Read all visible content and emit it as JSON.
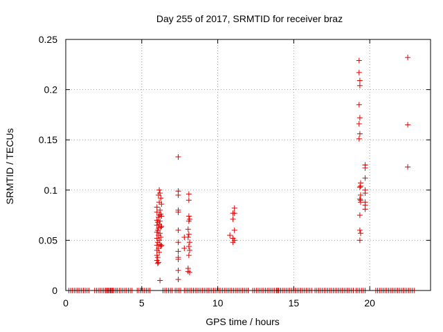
{
  "chart_data": {
    "type": "scatter",
    "title": "Day 255 of 2017, SRMTID for receiver braz",
    "xlabel": "GPS time / hours",
    "ylabel": "SRMTID / TECUs",
    "xlim": [
      0,
      24
    ],
    "ylim": [
      0,
      0.25
    ],
    "xticks": [
      0,
      5,
      10,
      15,
      20
    ],
    "xtick_labels": [
      "0",
      "5",
      "10",
      "15",
      "20"
    ],
    "yticks": [
      0,
      0.05,
      0.1,
      0.15,
      0.2,
      0.25
    ],
    "ytick_labels": [
      "0",
      "0.05",
      "0.1",
      "0.15",
      "0.2",
      "0.25"
    ],
    "grid": true,
    "marker": "+",
    "color": "#dd0000",
    "series": [
      {
        "name": "SRMTID",
        "points": [
          [
            6.0,
            0.083
          ],
          [
            6.0,
            0.078
          ],
          [
            6.0,
            0.07
          ],
          [
            6.0,
            0.065
          ],
          [
            6.0,
            0.058
          ],
          [
            6.0,
            0.052
          ],
          [
            6.0,
            0.045
          ],
          [
            6.0,
            0.04
          ],
          [
            6.0,
            0.035
          ],
          [
            6.0,
            0.03
          ],
          [
            6.05,
            0.068
          ],
          [
            6.05,
            0.06
          ],
          [
            6.05,
            0.048
          ],
          [
            6.05,
            0.033
          ],
          [
            6.05,
            0.027
          ],
          [
            6.1,
            0.095
          ],
          [
            6.1,
            0.073
          ],
          [
            6.1,
            0.062
          ],
          [
            6.1,
            0.055
          ],
          [
            6.1,
            0.042
          ],
          [
            6.1,
            0.028
          ],
          [
            6.15,
            0.1
          ],
          [
            6.15,
            0.088
          ],
          [
            6.15,
            0.075
          ],
          [
            6.15,
            0.066
          ],
          [
            6.15,
            0.05
          ],
          [
            6.15,
            0.038
          ],
          [
            6.2,
            0.097
          ],
          [
            6.2,
            0.08
          ],
          [
            6.2,
            0.069
          ],
          [
            6.2,
            0.057
          ],
          [
            6.2,
            0.046
          ],
          [
            6.2,
            0.01
          ],
          [
            6.25,
            0.092
          ],
          [
            6.25,
            0.076
          ],
          [
            6.25,
            0.063
          ],
          [
            6.25,
            0.053
          ],
          [
            6.25,
            0.044
          ],
          [
            6.3,
            0.086
          ],
          [
            6.3,
            0.074
          ],
          [
            6.3,
            0.064
          ],
          [
            6.3,
            0.045
          ],
          [
            7.4,
            0.133
          ],
          [
            7.4,
            0.099
          ],
          [
            7.4,
            0.095
          ],
          [
            7.4,
            0.08
          ],
          [
            7.4,
            0.078
          ],
          [
            7.4,
            0.06
          ],
          [
            7.4,
            0.048
          ],
          [
            7.4,
            0.039
          ],
          [
            7.4,
            0.033
          ],
          [
            7.4,
            0.031
          ],
          [
            7.4,
            0.02
          ],
          [
            7.4,
            0.011
          ],
          [
            7.8,
            0.053
          ],
          [
            7.8,
            0.042
          ],
          [
            8.05,
            0.061
          ],
          [
            8.05,
            0.053
          ],
          [
            8.05,
            0.022
          ],
          [
            8.05,
            0.019
          ],
          [
            8.1,
            0.096
          ],
          [
            8.1,
            0.09
          ],
          [
            8.1,
            0.074
          ],
          [
            8.1,
            0.069
          ],
          [
            8.1,
            0.056
          ],
          [
            8.1,
            0.044
          ],
          [
            8.1,
            0.035
          ],
          [
            8.15,
            0.071
          ],
          [
            8.15,
            0.048
          ],
          [
            8.15,
            0.04
          ],
          [
            8.15,
            0.018
          ],
          [
            10.8,
            0.055
          ],
          [
            11.0,
            0.077
          ],
          [
            11.0,
            0.071
          ],
          [
            11.0,
            0.052
          ],
          [
            11.0,
            0.048
          ],
          [
            11.1,
            0.082
          ],
          [
            11.1,
            0.077
          ],
          [
            11.1,
            0.06
          ],
          [
            11.1,
            0.05
          ],
          [
            19.3,
            0.229
          ],
          [
            19.3,
            0.217
          ],
          [
            19.3,
            0.185
          ],
          [
            19.3,
            0.166
          ],
          [
            19.3,
            0.151
          ],
          [
            19.35,
            0.209
          ],
          [
            19.35,
            0.204
          ],
          [
            19.35,
            0.172
          ],
          [
            19.35,
            0.156
          ],
          [
            19.35,
            0.103
          ],
          [
            19.35,
            0.091
          ],
          [
            19.35,
            0.075
          ],
          [
            19.35,
            0.06
          ],
          [
            19.35,
            0.05
          ],
          [
            19.4,
            0.107
          ],
          [
            19.4,
            0.104
          ],
          [
            19.4,
            0.095
          ],
          [
            19.4,
            0.09
          ],
          [
            19.4,
            0.088
          ],
          [
            19.4,
            0.057
          ],
          [
            19.7,
            0.125
          ],
          [
            19.7,
            0.122
          ],
          [
            19.7,
            0.112
          ],
          [
            19.7,
            0.1
          ],
          [
            19.7,
            0.097
          ],
          [
            19.7,
            0.088
          ],
          [
            19.7,
            0.085
          ],
          [
            19.7,
            0.081
          ],
          [
            22.5,
            0.232
          ],
          [
            22.5,
            0.165
          ],
          [
            22.5,
            0.123
          ]
        ],
        "zero_runs": [
          [
            0.2,
            1.6
          ],
          [
            1.9,
            2.5
          ],
          [
            2.7,
            3.4
          ],
          [
            2.5,
            3.2
          ],
          [
            3.4,
            4.4
          ],
          [
            4.7,
            5.2
          ],
          [
            5.3,
            5.6
          ],
          [
            6.4,
            7.0
          ],
          [
            7.2,
            7.6
          ],
          [
            7.8,
            8.5
          ],
          [
            8.4,
            12.0
          ],
          [
            12.3,
            14.0
          ],
          [
            13.9,
            16.2
          ],
          [
            16.4,
            19.0
          ],
          [
            19.1,
            19.8
          ],
          [
            20.4,
            23.0
          ]
        ]
      }
    ]
  }
}
